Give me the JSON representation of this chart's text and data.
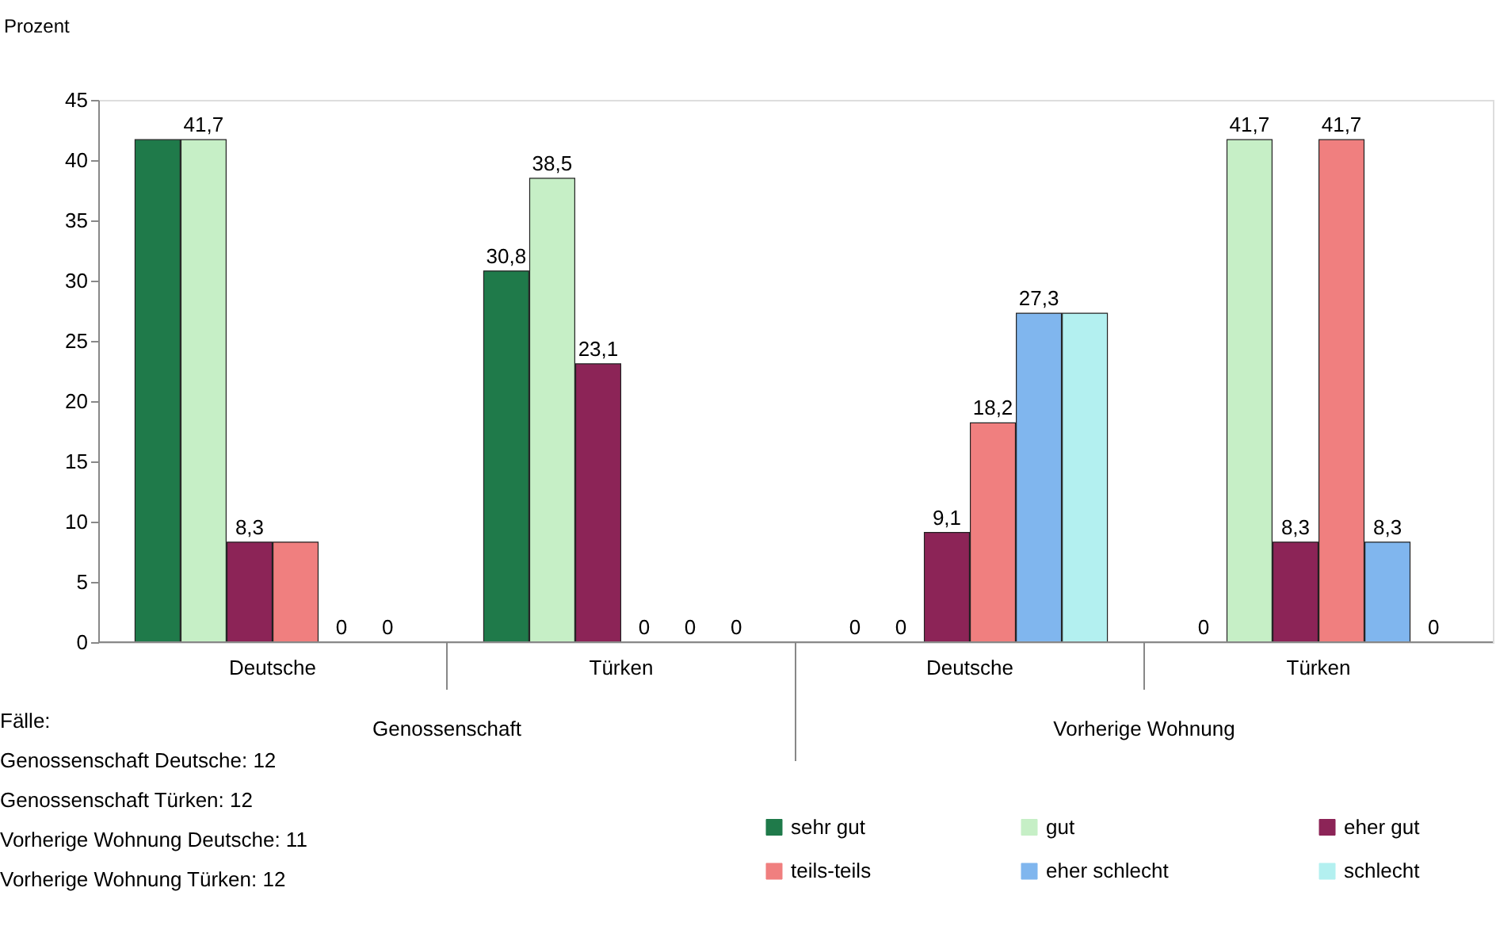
{
  "chart_data": {
    "type": "bar",
    "ylabel": "Prozent",
    "categories": [
      "Deutsche",
      "Türken",
      "Deutsche",
      "Türken"
    ],
    "series": [
      {
        "name": "sehr gut",
        "color": "#1f7a4a",
        "values": [
          41.7,
          30.8,
          0,
          0
        ],
        "value_labels": [
          null,
          "30,8",
          "0",
          "0"
        ]
      },
      {
        "name": "gut",
        "color": "#c6efc6",
        "values": [
          41.7,
          38.5,
          0,
          41.7
        ],
        "value_labels": [
          "41,7",
          "38,5",
          "0",
          "41,7"
        ]
      },
      {
        "name": "eher gut",
        "color": "#8c2457",
        "values": [
          8.3,
          23.1,
          9.1,
          8.3
        ],
        "value_labels": [
          "8,3",
          "23,1",
          "9,1",
          "8,3"
        ]
      },
      {
        "name": "teils-teils",
        "color": "#f07f7f",
        "values": [
          8.3,
          0,
          18.2,
          41.7
        ],
        "value_labels": [
          null,
          "0",
          "18,2",
          "41,7"
        ]
      },
      {
        "name": "eher schlecht",
        "color": "#80b6ee",
        "values": [
          0,
          0,
          27.3,
          8.3
        ],
        "value_labels": [
          "0",
          "0",
          "27,3",
          "8,3"
        ]
      },
      {
        "name": "schlecht",
        "color": "#b3f0f0",
        "values": [
          0,
          0,
          27.3,
          0
        ],
        "value_labels": [
          "0",
          "0",
          null,
          "0"
        ]
      }
    ],
    "ylim": [
      0,
      45
    ],
    "yticks": [
      0,
      5,
      10,
      15,
      20,
      25,
      30,
      35,
      40,
      45
    ],
    "grid": false,
    "legend": "bottom right",
    "annotations": [
      "Genossenschaft",
      "Vorherige Wohnung",
      "Fälle:",
      "Genossenschaft Deutsche: 12",
      "Genossenschaft Türken: 12",
      "Vorherige Wohnung Deutsche: 11",
      "Vorherige Wohnung Türken: 12"
    ]
  }
}
